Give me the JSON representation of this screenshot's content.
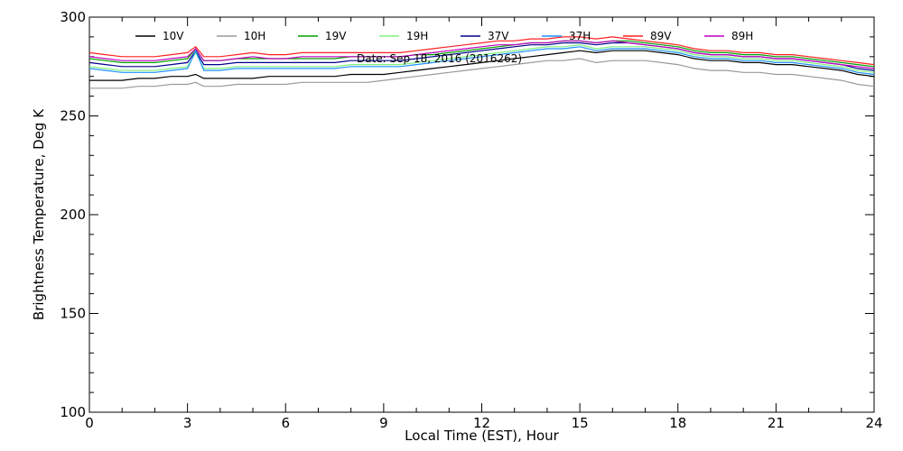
{
  "chart_data": {
    "type": "line",
    "title": "",
    "annotation": "Date: Sep 18, 2016 (2016262)",
    "xlabel": "Local Time (EST), Hour",
    "ylabel": "Brightness Temperature, Deg K",
    "xlim": [
      0,
      24
    ],
    "ylim": [
      100,
      300
    ],
    "xticks": [
      0,
      3,
      6,
      9,
      12,
      15,
      18,
      21,
      24
    ],
    "yticks": [
      100,
      150,
      200,
      250,
      300
    ],
    "grid": false,
    "legend_position": "top",
    "x": [
      0,
      0.5,
      1,
      1.5,
      2,
      2.5,
      3,
      3.25,
      3.5,
      4,
      4.5,
      5,
      5.5,
      6,
      6.5,
      7,
      7.5,
      8,
      8.5,
      9,
      9.5,
      10,
      10.5,
      11,
      11.5,
      12,
      12.5,
      13,
      13.5,
      14,
      14.5,
      15,
      15.5,
      16,
      16.5,
      17,
      17.5,
      18,
      18.5,
      19,
      19.5,
      20,
      20.5,
      21,
      21.5,
      22,
      22.5,
      23,
      23.5,
      24
    ],
    "series": [
      {
        "name": "10V",
        "color": "#000000",
        "values": [
          268,
          268,
          268,
          269,
          269,
          270,
          270,
          271,
          269,
          269,
          269,
          269,
          270,
          270,
          270,
          270,
          270,
          271,
          271,
          271,
          272,
          273,
          274,
          275,
          276,
          277,
          278,
          279,
          280,
          281,
          282,
          283,
          282,
          283,
          283,
          283,
          282,
          281,
          279,
          278,
          278,
          277,
          277,
          276,
          276,
          275,
          274,
          273,
          271,
          270
        ]
      },
      {
        "name": "10H",
        "color": "#9a9a9a",
        "values": [
          264,
          264,
          264,
          265,
          265,
          266,
          266,
          267,
          265,
          265,
          266,
          266,
          266,
          266,
          267,
          267,
          267,
          267,
          267,
          268,
          269,
          270,
          271,
          272,
          273,
          274,
          275,
          276,
          277,
          278,
          278,
          279,
          277,
          278,
          278,
          278,
          277,
          276,
          274,
          273,
          273,
          272,
          272,
          271,
          271,
          270,
          269,
          268,
          266,
          265
        ]
      },
      {
        "name": "19V",
        "color": "#00a000",
        "values": [
          279,
          278,
          277,
          277,
          277,
          278,
          279,
          284,
          278,
          278,
          279,
          279,
          279,
          279,
          279,
          279,
          279,
          280,
          280,
          280,
          280,
          281,
          281,
          282,
          283,
          284,
          285,
          286,
          287,
          287,
          288,
          288,
          287,
          288,
          288,
          287,
          286,
          285,
          283,
          282,
          282,
          281,
          281,
          280,
          280,
          279,
          278,
          277,
          276,
          275
        ]
      },
      {
        "name": "19H",
        "color": "#80f080",
        "values": [
          275,
          274,
          273,
          273,
          273,
          274,
          275,
          282,
          274,
          274,
          275,
          275,
          275,
          275,
          275,
          275,
          275,
          276,
          276,
          276,
          276,
          277,
          278,
          279,
          280,
          281,
          282,
          283,
          284,
          285,
          285,
          286,
          284,
          285,
          285,
          285,
          284,
          283,
          281,
          280,
          280,
          279,
          279,
          278,
          278,
          277,
          276,
          275,
          273,
          272
        ]
      },
      {
        "name": "37V",
        "color": "#00008b",
        "values": [
          277,
          276,
          275,
          275,
          275,
          276,
          277,
          283,
          276,
          276,
          277,
          277,
          277,
          277,
          277,
          277,
          277,
          278,
          278,
          278,
          278,
          279,
          280,
          281,
          282,
          283,
          284,
          285,
          286,
          286,
          287,
          287,
          286,
          287,
          287,
          286,
          285,
          284,
          282,
          281,
          281,
          280,
          280,
          279,
          279,
          278,
          277,
          276,
          274,
          273
        ]
      },
      {
        "name": "37H",
        "color": "#1e90ff",
        "values": [
          274,
          273,
          272,
          272,
          272,
          273,
          274,
          283,
          273,
          273,
          274,
          274,
          274,
          274,
          274,
          274,
          274,
          275,
          275,
          275,
          275,
          276,
          277,
          278,
          279,
          280,
          281,
          282,
          283,
          284,
          284,
          285,
          283,
          284,
          284,
          284,
          283,
          282,
          280,
          279,
          279,
          278,
          278,
          277,
          277,
          276,
          275,
          274,
          272,
          271
        ]
      },
      {
        "name": "89V",
        "color": "#ff2020",
        "values": [
          282,
          281,
          280,
          280,
          280,
          281,
          282,
          285,
          280,
          280,
          281,
          282,
          281,
          281,
          282,
          282,
          282,
          282,
          282,
          282,
          282,
          283,
          284,
          285,
          286,
          287,
          288,
          288,
          289,
          289,
          290,
          290,
          289,
          290,
          289,
          288,
          287,
          286,
          284,
          283,
          283,
          282,
          282,
          281,
          281,
          280,
          279,
          278,
          277,
          276
        ]
      },
      {
        "name": "89H",
        "color": "#c000c0",
        "values": [
          280,
          279,
          278,
          278,
          278,
          279,
          280,
          284,
          278,
          278,
          279,
          280,
          279,
          279,
          280,
          280,
          280,
          280,
          280,
          280,
          280,
          281,
          282,
          283,
          284,
          285,
          286,
          286,
          287,
          287,
          288,
          288,
          287,
          288,
          287,
          286,
          285,
          284,
          282,
          281,
          281,
          280,
          280,
          279,
          279,
          278,
          277,
          276,
          275,
          274
        ]
      }
    ]
  }
}
